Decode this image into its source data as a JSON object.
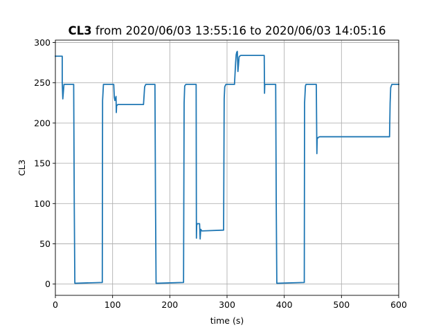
{
  "chart_data": {
    "type": "line",
    "title_bold": "CL3",
    "title_rest": " from 2020/06/03 13:55:16 to 2020/06/03 14:05:16",
    "xlabel": "time (s)",
    "ylabel": "CL3",
    "xlim": [
      0,
      600
    ],
    "ylim": [
      -14,
      303
    ],
    "xticks": [
      0,
      100,
      200,
      300,
      400,
      500,
      600
    ],
    "yticks": [
      0,
      50,
      100,
      150,
      200,
      250,
      300
    ],
    "grid": true,
    "series": [
      {
        "color": "#1f77b4",
        "x": [
          0,
          12,
          12,
          13,
          15,
          16,
          32,
          33,
          34,
          82,
          82.5,
          84,
          102,
          103,
          104,
          106,
          106.5,
          107,
          108,
          109,
          110,
          154,
          156,
          158,
          174,
          175,
          176,
          224,
          225,
          226,
          228,
          246,
          246.5,
          247,
          248,
          252,
          253,
          254,
          256,
          294,
          295,
          296,
          298,
          312,
          313,
          315,
          316,
          317,
          318,
          319,
          320,
          321,
          322,
          324,
          365,
          365.5,
          366,
          367,
          385,
          386,
          387,
          435,
          435.5,
          437,
          438,
          456,
          457,
          457.5,
          459,
          462,
          470,
          584,
          585,
          586,
          588,
          600
        ],
        "y": [
          283,
          283,
          250,
          230,
          248,
          248,
          248,
          100,
          1,
          2,
          228,
          248,
          248,
          232,
          228,
          233,
          213,
          222,
          222,
          223,
          223,
          223,
          245,
          248,
          248,
          100,
          1,
          2,
          225,
          246,
          248,
          248,
          57,
          73,
          75,
          75,
          56,
          68,
          66,
          67,
          230,
          245,
          248,
          248,
          248,
          275,
          285,
          288,
          289,
          264,
          272,
          282,
          283,
          284,
          284,
          237,
          248,
          248,
          248,
          100,
          1,
          2,
          225,
          246,
          248,
          248,
          162,
          180,
          182,
          183,
          183,
          183,
          225,
          244,
          248,
          248
        ]
      }
    ]
  }
}
